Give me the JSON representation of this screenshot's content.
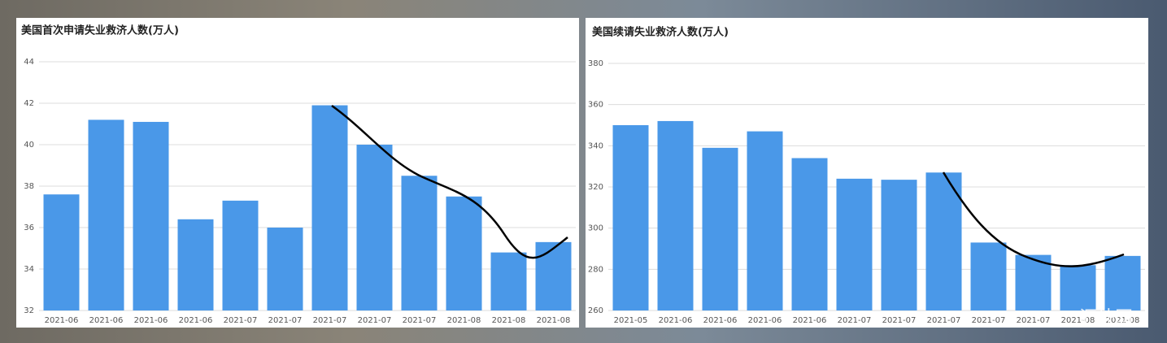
{
  "chart_data": [
    {
      "type": "bar",
      "title": "美国首次申请失业救济人数(万人)",
      "categories": [
        "2021-06",
        "2021-06",
        "2021-06",
        "2021-06",
        "2021-07",
        "2021-07",
        "2021-07",
        "2021-07",
        "2021-07",
        "2021-08",
        "2021-08",
        "2021-08"
      ],
      "values": [
        37.6,
        41.2,
        41.1,
        36.4,
        37.3,
        36.0,
        41.9,
        40.0,
        38.5,
        37.5,
        34.8,
        35.3
      ],
      "color": "#4a98e8",
      "ylim": [
        32,
        44
      ],
      "yticks": [
        32,
        34,
        36,
        38,
        40,
        42,
        44
      ],
      "grid": true
    },
    {
      "type": "bar",
      "title": "美国续请失业救济人数(万人)",
      "categories": [
        "2021-05",
        "2021-06",
        "2021-06",
        "2021-06",
        "2021-06",
        "2021-07",
        "2021-07",
        "2021-07",
        "2021-07",
        "2021-07",
        "2021-08",
        "2021-08"
      ],
      "values": [
        350,
        352,
        339,
        347,
        334,
        324,
        323.5,
        327,
        293,
        287,
        282,
        286.5
      ],
      "color": "#4a98e8",
      "ylim": [
        260,
        380
      ],
      "yticks": [
        260,
        280,
        300,
        320,
        340,
        360,
        380
      ],
      "grid": true
    }
  ],
  "watermark": "汇外网"
}
